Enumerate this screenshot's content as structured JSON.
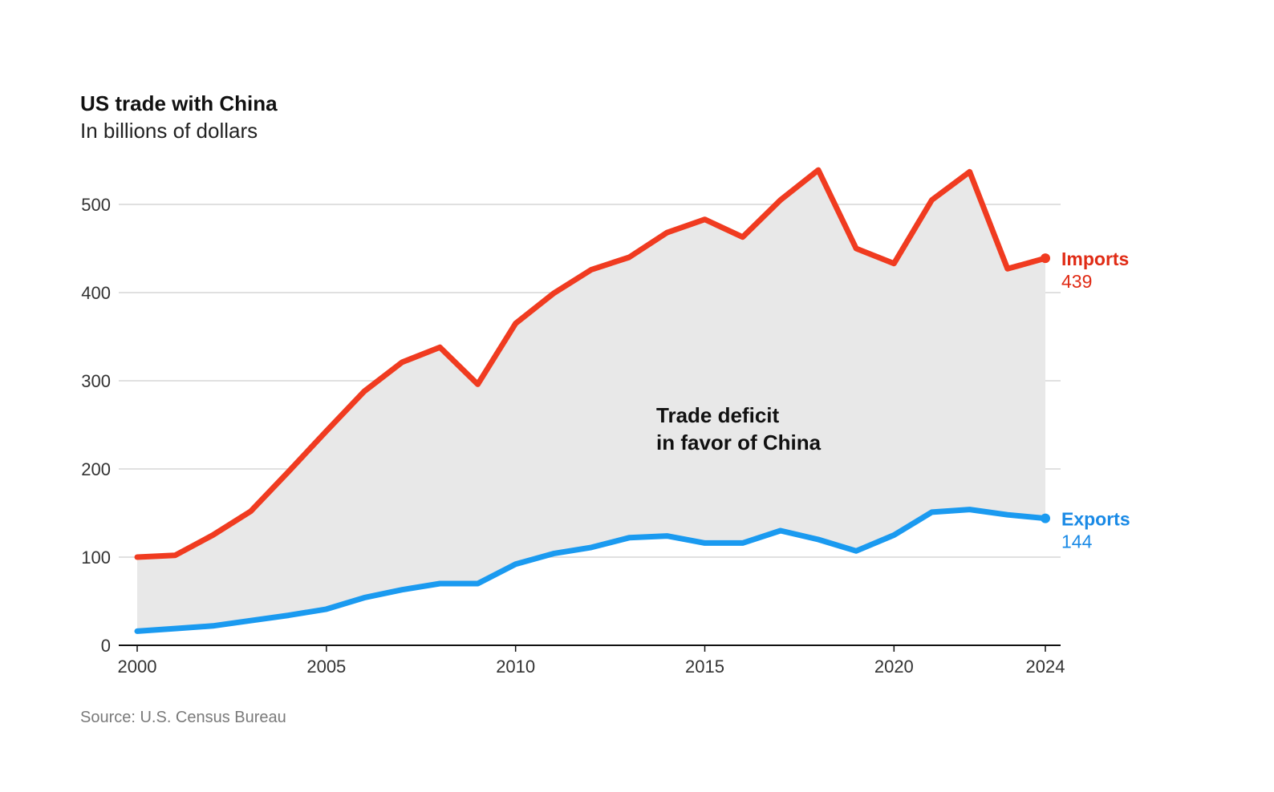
{
  "chart_data": {
    "type": "area",
    "title": "US trade with China",
    "subtitle": "In billions of dollars",
    "source": "Source: U.S. Census Bureau",
    "annotation_line1": "Trade deficit",
    "annotation_line2": "in favor of China",
    "x": [
      2000,
      2001,
      2002,
      2003,
      2004,
      2005,
      2006,
      2007,
      2008,
      2009,
      2010,
      2011,
      2012,
      2013,
      2014,
      2015,
      2016,
      2017,
      2018,
      2019,
      2020,
      2021,
      2022,
      2023,
      2024
    ],
    "xticks": [
      2000,
      2005,
      2010,
      2015,
      2020,
      2024
    ],
    "xlim": [
      2000,
      2024
    ],
    "yticks": [
      0,
      100,
      200,
      300,
      400,
      500
    ],
    "ylim": [
      0,
      500
    ],
    "series": [
      {
        "name": "Imports",
        "color": "#f03b20",
        "label_color": "#e02b15",
        "end_label": "439",
        "values": [
          100,
          102,
          125,
          152,
          197,
          243,
          288,
          321,
          338,
          296,
          365,
          399,
          426,
          440,
          468,
          483,
          463,
          505,
          539,
          450,
          433,
          505,
          537,
          427,
          439
        ]
      },
      {
        "name": "Exports",
        "color": "#1a9af0",
        "label_color": "#1a8ae6",
        "end_label": "144",
        "values": [
          16,
          19,
          22,
          28,
          34,
          41,
          54,
          63,
          70,
          70,
          92,
          104,
          111,
          122,
          124,
          116,
          116,
          130,
          120,
          107,
          125,
          151,
          154,
          148,
          144
        ]
      }
    ],
    "fill_between_color": "#e8e8e8",
    "grid": true,
    "legend": "end-labels-right"
  }
}
